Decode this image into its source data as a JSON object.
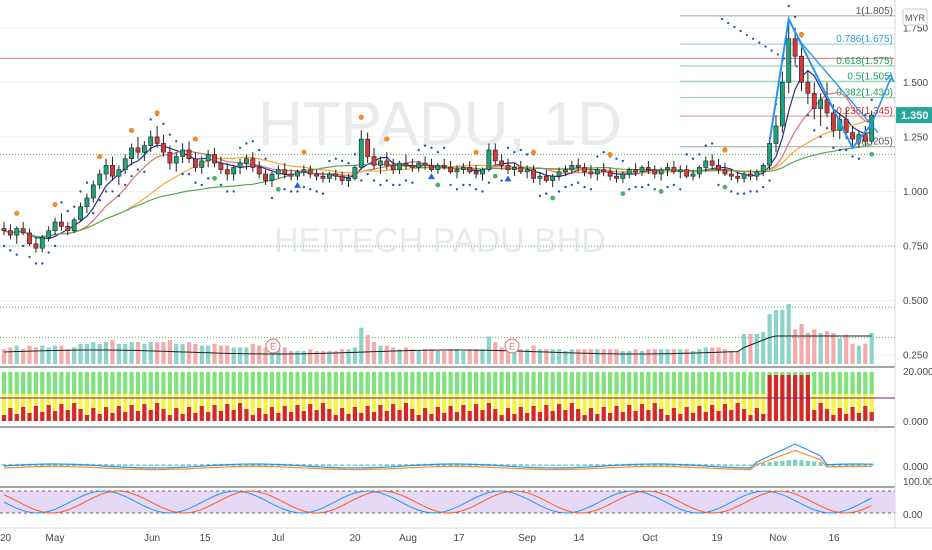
{
  "chart_data": {
    "type": "candlestick",
    "symbol": "HTPADU",
    "interval": "1D",
    "company": "HEITECH PADU BHD",
    "currency": "MYR",
    "last_price": "1.350",
    "price_axis": {
      "range": [
        0.2,
        1.85
      ],
      "ticks": [
        "1.750",
        "1.500",
        "1.250",
        "1.000",
        "0.750",
        "0.500",
        "0.250"
      ]
    },
    "x_axis_labels": [
      "20",
      "May",
      "Jun",
      "15",
      "Jul",
      "20",
      "Aug",
      "17",
      "Sep",
      "14",
      "Oct",
      "19",
      "Nov",
      "16"
    ],
    "fibonacci": [
      {
        "label": "1(1.805)",
        "value": 1.805,
        "color": "#555555"
      },
      {
        "label": "0.786(1.675)",
        "value": 1.675,
        "color": "#2a9fd6"
      },
      {
        "label": "0.618(1.575)",
        "value": 1.575,
        "color": "#21a05a"
      },
      {
        "label": "0.5(1.505)",
        "value": 1.505,
        "color": "#21a05a"
      },
      {
        "label": "0.382(1.430)",
        "value": 1.43,
        "color": "#21a05a"
      },
      {
        "label": "0.236(1.345)",
        "value": 1.345,
        "color": "#d03030"
      },
      {
        "label": "0(1.205)",
        "value": 1.205,
        "color": "#555555"
      }
    ],
    "candles": [
      [
        0.83,
        0.86,
        0.8,
        0.82
      ],
      [
        0.82,
        0.85,
        0.78,
        0.8
      ],
      [
        0.8,
        0.84,
        0.76,
        0.83
      ],
      [
        0.83,
        0.86,
        0.8,
        0.81
      ],
      [
        0.81,
        0.83,
        0.75,
        0.76
      ],
      [
        0.76,
        0.79,
        0.72,
        0.74
      ],
      [
        0.74,
        0.8,
        0.72,
        0.79
      ],
      [
        0.79,
        0.84,
        0.77,
        0.82
      ],
      [
        0.82,
        0.88,
        0.8,
        0.86
      ],
      [
        0.86,
        0.9,
        0.82,
        0.84
      ],
      [
        0.84,
        0.86,
        0.8,
        0.82
      ],
      [
        0.82,
        0.88,
        0.81,
        0.87
      ],
      [
        0.87,
        0.95,
        0.86,
        0.93
      ],
      [
        0.93,
        0.99,
        0.9,
        0.97
      ],
      [
        0.97,
        1.05,
        0.95,
        1.03
      ],
      [
        1.03,
        1.1,
        1.01,
        1.08
      ],
      [
        1.08,
        1.15,
        1.05,
        1.12
      ],
      [
        1.12,
        1.16,
        1.05,
        1.07
      ],
      [
        1.07,
        1.12,
        1.03,
        1.1
      ],
      [
        1.1,
        1.17,
        1.08,
        1.15
      ],
      [
        1.15,
        1.22,
        1.12,
        1.2
      ],
      [
        1.2,
        1.25,
        1.15,
        1.18
      ],
      [
        1.18,
        1.23,
        1.14,
        1.21
      ],
      [
        1.21,
        1.28,
        1.18,
        1.25
      ],
      [
        1.25,
        1.3,
        1.2,
        1.22
      ],
      [
        1.22,
        1.26,
        1.16,
        1.18
      ],
      [
        1.18,
        1.21,
        1.1,
        1.13
      ],
      [
        1.13,
        1.18,
        1.09,
        1.16
      ],
      [
        1.16,
        1.22,
        1.13,
        1.19
      ],
      [
        1.19,
        1.23,
        1.13,
        1.15
      ],
      [
        1.15,
        1.18,
        1.09,
        1.11
      ],
      [
        1.11,
        1.16,
        1.08,
        1.14
      ],
      [
        1.14,
        1.19,
        1.11,
        1.17
      ],
      [
        1.17,
        1.2,
        1.11,
        1.13
      ],
      [
        1.13,
        1.16,
        1.08,
        1.1
      ],
      [
        1.1,
        1.13,
        1.05,
        1.08
      ],
      [
        1.08,
        1.12,
        1.05,
        1.11
      ],
      [
        1.11,
        1.15,
        1.08,
        1.13
      ],
      [
        1.13,
        1.17,
        1.1,
        1.15
      ],
      [
        1.15,
        1.18,
        1.09,
        1.11
      ],
      [
        1.11,
        1.14,
        1.06,
        1.08
      ],
      [
        1.08,
        1.1,
        1.03,
        1.05
      ],
      [
        1.05,
        1.09,
        1.02,
        1.08
      ],
      [
        1.08,
        1.12,
        1.06,
        1.1
      ],
      [
        1.1,
        1.13,
        1.06,
        1.08
      ],
      [
        1.08,
        1.1,
        1.05,
        1.07
      ],
      [
        1.07,
        1.1,
        1.05,
        1.09
      ],
      [
        1.09,
        1.12,
        1.07,
        1.1
      ],
      [
        1.1,
        1.12,
        1.06,
        1.08
      ],
      [
        1.08,
        1.1,
        1.05,
        1.07
      ],
      [
        1.07,
        1.09,
        1.04,
        1.06
      ],
      [
        1.06,
        1.09,
        1.04,
        1.08
      ],
      [
        1.08,
        1.1,
        1.05,
        1.07
      ],
      [
        1.07,
        1.09,
        1.03,
        1.05
      ],
      [
        1.05,
        1.08,
        1.02,
        1.06
      ],
      [
        1.06,
        1.12,
        1.05,
        1.11
      ],
      [
        1.11,
        1.28,
        1.1,
        1.24
      ],
      [
        1.24,
        1.27,
        1.13,
        1.16
      ],
      [
        1.16,
        1.2,
        1.1,
        1.12
      ],
      [
        1.12,
        1.16,
        1.08,
        1.14
      ],
      [
        1.14,
        1.18,
        1.1,
        1.12
      ],
      [
        1.12,
        1.15,
        1.08,
        1.1
      ],
      [
        1.1,
        1.14,
        1.08,
        1.13
      ],
      [
        1.13,
        1.17,
        1.1,
        1.12
      ],
      [
        1.12,
        1.15,
        1.09,
        1.11
      ],
      [
        1.11,
        1.14,
        1.09,
        1.13
      ],
      [
        1.13,
        1.16,
        1.1,
        1.12
      ],
      [
        1.12,
        1.15,
        1.09,
        1.1
      ],
      [
        1.1,
        1.13,
        1.08,
        1.12
      ],
      [
        1.12,
        1.15,
        1.1,
        1.11
      ],
      [
        1.11,
        1.14,
        1.08,
        1.09
      ],
      [
        1.09,
        1.12,
        1.06,
        1.1
      ],
      [
        1.1,
        1.13,
        1.08,
        1.11
      ],
      [
        1.11,
        1.14,
        1.08,
        1.09
      ],
      [
        1.09,
        1.12,
        1.06,
        1.08
      ],
      [
        1.08,
        1.11,
        1.05,
        1.1
      ],
      [
        1.1,
        1.22,
        1.09,
        1.19
      ],
      [
        1.19,
        1.22,
        1.12,
        1.14
      ],
      [
        1.14,
        1.17,
        1.1,
        1.12
      ],
      [
        1.12,
        1.15,
        1.08,
        1.1
      ],
      [
        1.1,
        1.13,
        1.07,
        1.11
      ],
      [
        1.11,
        1.14,
        1.08,
        1.09
      ],
      [
        1.09,
        1.12,
        1.06,
        1.1
      ],
      [
        1.1,
        1.12,
        1.04,
        1.06
      ],
      [
        1.06,
        1.09,
        1.03,
        1.07
      ],
      [
        1.07,
        1.1,
        1.04,
        1.05
      ],
      [
        1.05,
        1.08,
        1.02,
        1.07
      ],
      [
        1.07,
        1.11,
        1.05,
        1.09
      ],
      [
        1.09,
        1.12,
        1.07,
        1.1
      ],
      [
        1.1,
        1.14,
        1.08,
        1.12
      ],
      [
        1.12,
        1.15,
        1.09,
        1.11
      ],
      [
        1.11,
        1.13,
        1.07,
        1.09
      ],
      [
        1.09,
        1.12,
        1.06,
        1.08
      ],
      [
        1.08,
        1.11,
        1.05,
        1.1
      ],
      [
        1.1,
        1.13,
        1.07,
        1.09
      ],
      [
        1.09,
        1.11,
        1.05,
        1.07
      ],
      [
        1.07,
        1.1,
        1.04,
        1.06
      ],
      [
        1.06,
        1.09,
        1.04,
        1.08
      ],
      [
        1.08,
        1.11,
        1.06,
        1.1
      ],
      [
        1.1,
        1.13,
        1.07,
        1.09
      ],
      [
        1.09,
        1.12,
        1.07,
        1.11
      ],
      [
        1.11,
        1.14,
        1.08,
        1.1
      ],
      [
        1.1,
        1.12,
        1.06,
        1.08
      ],
      [
        1.08,
        1.11,
        1.05,
        1.1
      ],
      [
        1.1,
        1.13,
        1.07,
        1.11
      ],
      [
        1.11,
        1.14,
        1.08,
        1.09
      ],
      [
        1.09,
        1.12,
        1.06,
        1.1
      ],
      [
        1.1,
        1.12,
        1.06,
        1.07
      ],
      [
        1.07,
        1.1,
        1.05,
        1.08
      ],
      [
        1.08,
        1.12,
        1.06,
        1.11
      ],
      [
        1.11,
        1.16,
        1.09,
        1.14
      ],
      [
        1.14,
        1.17,
        1.1,
        1.12
      ],
      [
        1.12,
        1.15,
        1.08,
        1.1
      ],
      [
        1.1,
        1.13,
        1.07,
        1.08
      ],
      [
        1.08,
        1.1,
        1.05,
        1.07
      ],
      [
        1.07,
        1.09,
        1.04,
        1.06
      ],
      [
        1.06,
        1.09,
        1.04,
        1.08
      ],
      [
        1.08,
        1.1,
        1.05,
        1.07
      ],
      [
        1.07,
        1.1,
        1.05,
        1.09
      ],
      [
        1.09,
        1.13,
        1.07,
        1.12
      ],
      [
        1.12,
        1.25,
        1.1,
        1.22
      ],
      [
        1.22,
        1.35,
        1.18,
        1.3
      ],
      [
        1.3,
        1.55,
        1.27,
        1.5
      ],
      [
        1.5,
        1.8,
        1.45,
        1.7
      ],
      [
        1.7,
        1.75,
        1.58,
        1.62
      ],
      [
        1.62,
        1.66,
        1.46,
        1.5
      ],
      [
        1.5,
        1.55,
        1.4,
        1.45
      ],
      [
        1.45,
        1.5,
        1.33,
        1.38
      ],
      [
        1.38,
        1.45,
        1.3,
        1.42
      ],
      [
        1.42,
        1.5,
        1.34,
        1.36
      ],
      [
        1.36,
        1.4,
        1.25,
        1.28
      ],
      [
        1.28,
        1.36,
        1.24,
        1.33
      ],
      [
        1.33,
        1.38,
        1.24,
        1.27
      ],
      [
        1.27,
        1.3,
        1.21,
        1.24
      ],
      [
        1.24,
        1.28,
        1.2,
        1.26
      ],
      [
        1.26,
        1.3,
        1.21,
        1.23
      ],
      [
        1.23,
        1.37,
        1.22,
        1.35
      ]
    ],
    "volume_scale_max": 0.7
  }
}
